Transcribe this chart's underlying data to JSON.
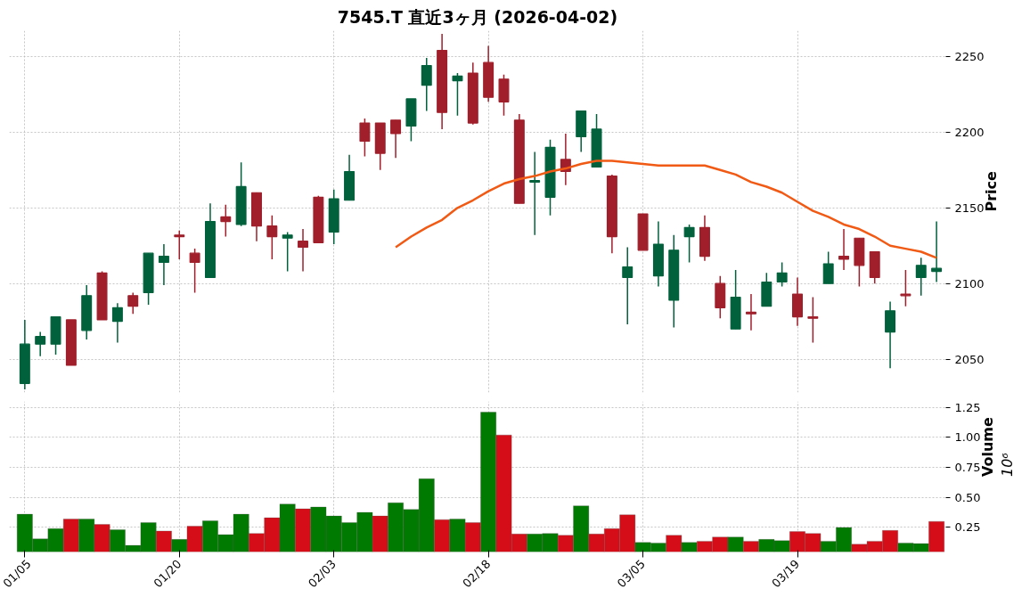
{
  "chart_data": [
    {
      "type": "candlestick",
      "title": "7545.T 直近3ヶ月 (2026-04-02)",
      "ylabel": "Price",
      "ohlc": [
        [
          2034,
          2076,
          2030,
          2060
        ],
        [
          2060,
          2068,
          2052,
          2065
        ],
        [
          2060,
          2078,
          2053,
          2078
        ],
        [
          2076,
          2076,
          2046,
          2046
        ],
        [
          2069,
          2099,
          2063,
          2092
        ],
        [
          2107,
          2108,
          2076,
          2076
        ],
        [
          2075,
          2087,
          2061,
          2084
        ],
        [
          2092,
          2094,
          2080,
          2085
        ],
        [
          2094,
          2120,
          2086,
          2120
        ],
        [
          2114,
          2126,
          2099,
          2118
        ],
        [
          2132,
          2135,
          2116,
          2131
        ],
        [
          2120,
          2123,
          2094,
          2114
        ],
        [
          2104,
          2153,
          2104,
          2141
        ],
        [
          2144,
          2152,
          2131,
          2141
        ],
        [
          2139,
          2180,
          2138,
          2164
        ],
        [
          2160,
          2160,
          2128,
          2138
        ],
        [
          2138,
          2145,
          2116,
          2131
        ],
        [
          2130,
          2134,
          2108,
          2132
        ],
        [
          2128,
          2136,
          2108,
          2124
        ],
        [
          2157,
          2158,
          2127,
          2127
        ],
        [
          2134,
          2162,
          2126,
          2156
        ],
        [
          2155,
          2185,
          2155,
          2174
        ],
        [
          2206,
          2209,
          2184,
          2194
        ],
        [
          2206,
          2206,
          2175,
          2186
        ],
        [
          2208,
          2208,
          2183,
          2199
        ],
        [
          2204,
          2222,
          2194,
          2222
        ],
        [
          2231,
          2249,
          2214,
          2244
        ],
        [
          2254,
          2265,
          2202,
          2213
        ],
        [
          2234,
          2239,
          2211,
          2237
        ],
        [
          2239,
          2246,
          2205,
          2206
        ],
        [
          2246,
          2257,
          2220,
          2223
        ],
        [
          2235,
          2238,
          2211,
          2220
        ],
        [
          2208,
          2212,
          2153,
          2153
        ],
        [
          2167,
          2187,
          2132,
          2168
        ],
        [
          2157,
          2195,
          2145,
          2190
        ],
        [
          2182,
          2199,
          2165,
          2174
        ],
        [
          2197,
          2214,
          2187,
          2214
        ],
        [
          2177,
          2212,
          2177,
          2202
        ],
        [
          2171,
          2172,
          2120,
          2131
        ],
        [
          2104,
          2124,
          2073,
          2111
        ],
        [
          2146,
          2146,
          2122,
          2122
        ],
        [
          2105,
          2141,
          2098,
          2126
        ],
        [
          2089,
          2132,
          2071,
          2122
        ],
        [
          2131,
          2139,
          2114,
          2137
        ],
        [
          2137,
          2145,
          2115,
          2118
        ],
        [
          2100,
          2105,
          2077,
          2084
        ],
        [
          2070,
          2109,
          2070,
          2091
        ],
        [
          2081,
          2093,
          2069,
          2080
        ],
        [
          2085,
          2107,
          2085,
          2101
        ],
        [
          2101,
          2114,
          2098,
          2107
        ],
        [
          2093,
          2104,
          2072,
          2078
        ],
        [
          2078,
          2091,
          2061,
          2077
        ],
        [
          2100,
          2121,
          2100,
          2113
        ],
        [
          2118,
          2136,
          2109,
          2116
        ],
        [
          2130,
          2130,
          2098,
          2112
        ],
        [
          2121,
          2121,
          2100,
          2104
        ],
        [
          2068,
          2088,
          2044,
          2082
        ],
        [
          2093,
          2109,
          2085,
          2092
        ],
        [
          2104,
          2117,
          2092,
          2112
        ],
        [
          2108,
          2141,
          2101,
          2110
        ]
      ],
      "colors": [
        "#00613c",
        "#00613c",
        "#00613c",
        "#a01f2b",
        "#00613c",
        "#a01f2b",
        "#00613c",
        "#a01f2b",
        "#00613c",
        "#00613c",
        "#a01f2b",
        "#a01f2b",
        "#00613c",
        "#a01f2b",
        "#00613c",
        "#a01f2b",
        "#a01f2b",
        "#00613c",
        "#a01f2b",
        "#a01f2b",
        "#00613c",
        "#00613c",
        "#a01f2b",
        "#a01f2b",
        "#a01f2b",
        "#00613c",
        "#00613c",
        "#a01f2b",
        "#00613c",
        "#a01f2b",
        "#a01f2b",
        "#a01f2b",
        "#a01f2b",
        "#00613c",
        "#00613c",
        "#a01f2b",
        "#00613c",
        "#00613c",
        "#a01f2b",
        "#00613c",
        "#a01f2b",
        "#00613c",
        "#00613c",
        "#00613c",
        "#a01f2b",
        "#a01f2b",
        "#00613c",
        "#a01f2b",
        "#00613c",
        "#00613c",
        "#a01f2b",
        "#a01f2b",
        "#00613c",
        "#a01f2b",
        "#a01f2b",
        "#a01f2b",
        "#00613c",
        "#a01f2b",
        "#00613c",
        "#00613c"
      ],
      "series": [
        {
          "type": "line",
          "color": "#f05a14",
          "values": [
            null,
            null,
            null,
            null,
            null,
            null,
            null,
            null,
            null,
            null,
            null,
            null,
            null,
            null,
            null,
            null,
            null,
            null,
            null,
            null,
            null,
            null,
            null,
            null,
            2124,
            2131,
            2137,
            2142,
            2150,
            2155,
            2161,
            2166,
            2169,
            2171,
            2174,
            2176,
            2179,
            2181,
            2181,
            2180,
            2179,
            2178,
            2178,
            2178,
            2178,
            2175,
            2172,
            2167,
            2164,
            2160,
            2154,
            2148,
            2144,
            2139,
            2136,
            2131,
            2125,
            2123,
            2121,
            2117
          ]
        }
      ],
      "ylim": [
        2028,
        2267
      ],
      "yticks": [
        2050,
        2100,
        2150,
        2200,
        2250
      ],
      "grid": true,
      "tick_labels": "y"
    },
    {
      "type": "bar",
      "ylabel": "Volume",
      "annotations": [
        "10⁶"
      ],
      "categories": [
        "01/05",
        null,
        null,
        null,
        null,
        null,
        null,
        null,
        null,
        null,
        "01/20",
        null,
        null,
        null,
        null,
        null,
        null,
        null,
        null,
        null,
        "02/03",
        null,
        null,
        null,
        null,
        null,
        null,
        null,
        null,
        null,
        "02/18",
        null,
        null,
        null,
        null,
        null,
        null,
        null,
        null,
        null,
        "03/05",
        null,
        null,
        null,
        null,
        null,
        null,
        null,
        null,
        null,
        "03/19",
        null,
        null,
        null,
        null,
        null,
        null,
        null,
        null,
        null
      ],
      "values": [
        0.36,
        0.155,
        0.24,
        0.32,
        0.32,
        0.275,
        0.23,
        0.1,
        0.29,
        0.22,
        0.15,
        0.26,
        0.305,
        0.19,
        0.36,
        0.2,
        0.33,
        0.445,
        0.405,
        0.42,
        0.345,
        0.29,
        0.375,
        0.345,
        0.455,
        0.4,
        0.655,
        0.315,
        0.32,
        0.29,
        1.21,
        1.02,
        0.195,
        0.195,
        0.2,
        0.185,
        0.43,
        0.195,
        0.24,
        0.355,
        0.125,
        0.12,
        0.185,
        0.125,
        0.135,
        0.17,
        0.17,
        0.135,
        0.15,
        0.14,
        0.215,
        0.2,
        0.135,
        0.25,
        0.11,
        0.135,
        0.225,
        0.12,
        0.115,
        0.3
      ],
      "colors": [
        "#007a00",
        "#007a00",
        "#007a00",
        "#d50d18",
        "#007a00",
        "#d50d18",
        "#007a00",
        "#007a00",
        "#007a00",
        "#d50d18",
        "#007a00",
        "#d50d18",
        "#007a00",
        "#007a00",
        "#007a00",
        "#d50d18",
        "#d50d18",
        "#007a00",
        "#d50d18",
        "#007a00",
        "#007a00",
        "#007a00",
        "#007a00",
        "#d50d18",
        "#007a00",
        "#007a00",
        "#007a00",
        "#d50d18",
        "#007a00",
        "#d50d18",
        "#007a00",
        "#d50d18",
        "#d50d18",
        "#007a00",
        "#007a00",
        "#d50d18",
        "#007a00",
        "#d50d18",
        "#d50d18",
        "#d50d18",
        "#007a00",
        "#007a00",
        "#d50d18",
        "#007a00",
        "#d50d18",
        "#d50d18",
        "#007a00",
        "#d50d18",
        "#007a00",
        "#007a00",
        "#d50d18",
        "#d50d18",
        "#007a00",
        "#007a00",
        "#d50d18",
        "#d50d18",
        "#d50d18",
        "#007a00",
        "#007a00",
        "#d50d18"
      ],
      "ylim": [
        0.045,
        1.3
      ],
      "yticks": [
        {
          "value": 0.25,
          "label": "0.25"
        },
        {
          "value": 0.5,
          "label": "0.50"
        },
        {
          "value": 0.75,
          "label": "0.75"
        },
        {
          "value": 1.0,
          "label": "1.00"
        },
        {
          "value": 1.25,
          "label": "1.25"
        }
      ],
      "grid": true
    }
  ]
}
